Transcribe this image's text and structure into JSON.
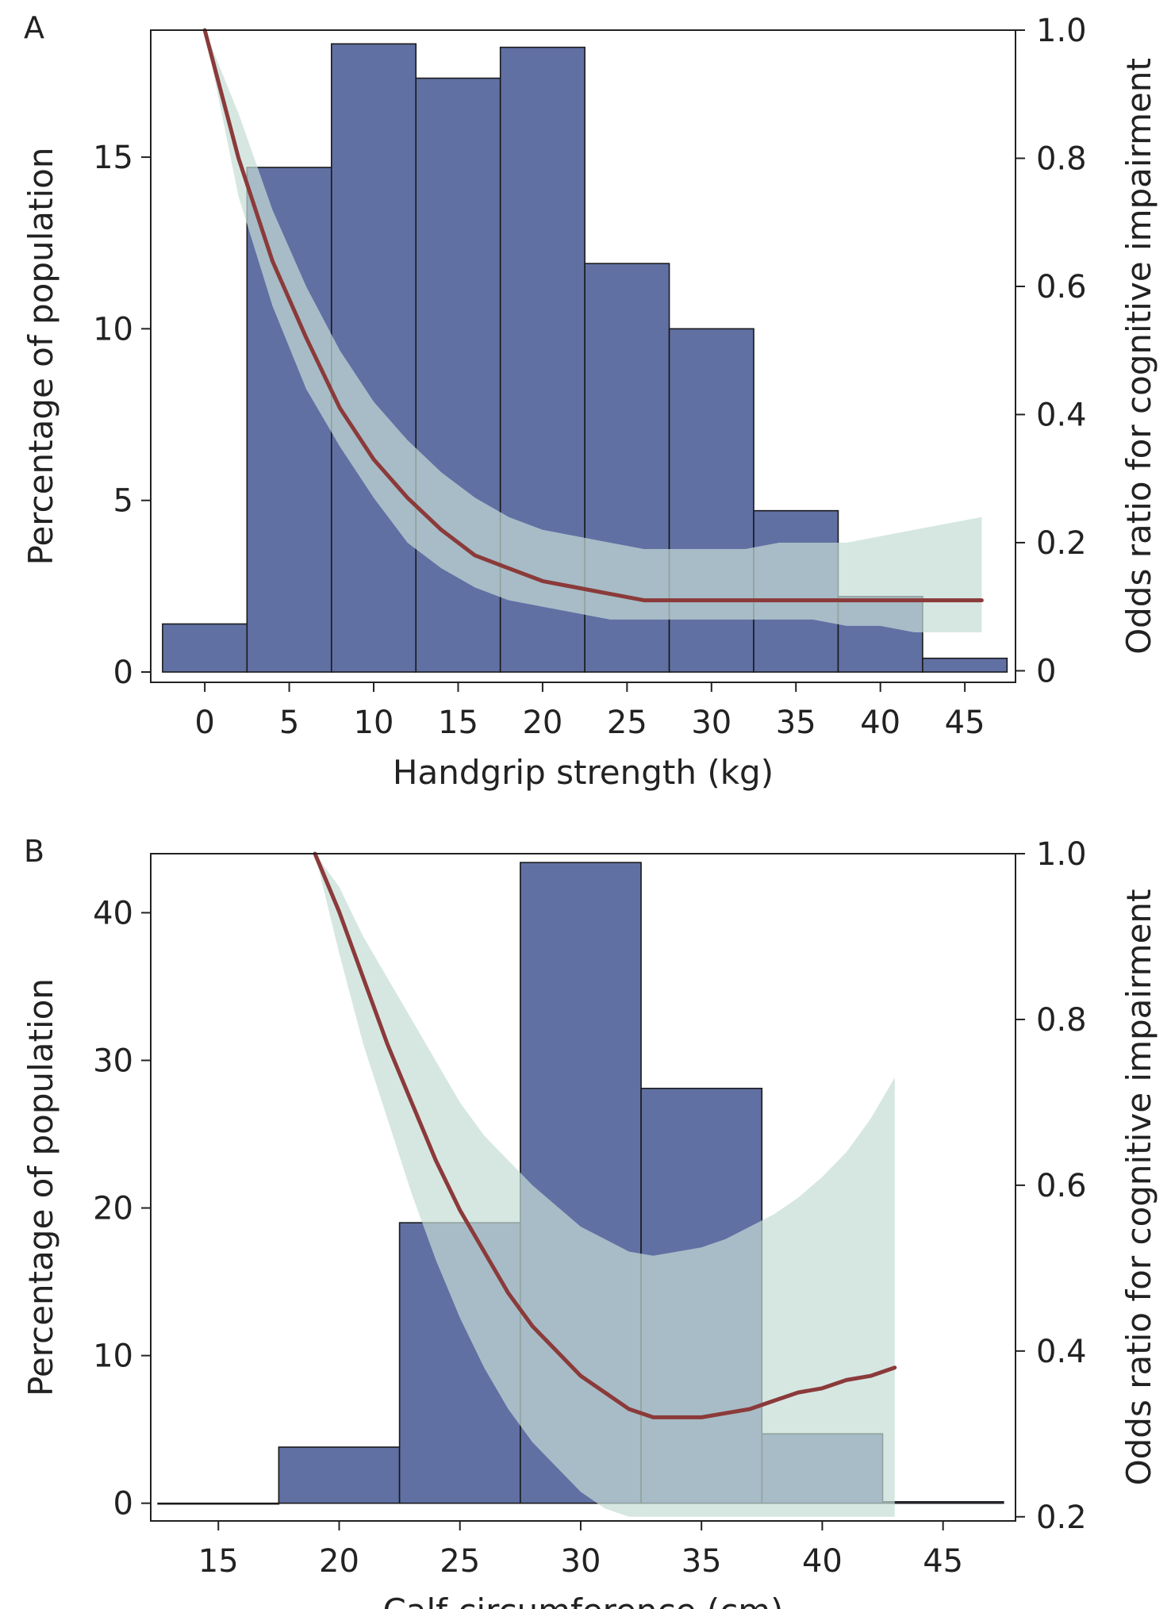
{
  "colors": {
    "bar_fill": "#6170a3",
    "bar_edge": "#1a1a1a",
    "curve": "#8b3a3a",
    "band": "#c5ddd5",
    "axis": "#222222"
  },
  "chart_data": [
    {
      "type": "bar",
      "panel_label": "A",
      "xlabel": "Handgrip strength (kg)",
      "ylabel": "Percentage of population",
      "y2label": "Odds ratio for cognitive impairment",
      "xlim": [
        -3.2,
        48
      ],
      "ylim": [
        -0.3,
        18.7
      ],
      "y2lim": [
        -0.018,
        1.0
      ],
      "xticks": [
        "0",
        "5",
        "10",
        "15",
        "20",
        "25",
        "30",
        "35",
        "40",
        "45"
      ],
      "yticks": [
        "0",
        "5",
        "10",
        "15"
      ],
      "y2ticks": [
        "0",
        "0.2",
        "0.4",
        "0.6",
        "0.8",
        "1.0"
      ],
      "bins": [
        {
          "from": -2.5,
          "to": 2.5,
          "value": 1.4
        },
        {
          "from": 2.5,
          "to": 7.5,
          "value": 14.7
        },
        {
          "from": 7.5,
          "to": 12.5,
          "value": 18.3
        },
        {
          "from": 12.5,
          "to": 17.5,
          "value": 17.3
        },
        {
          "from": 17.5,
          "to": 22.5,
          "value": 18.2
        },
        {
          "from": 22.5,
          "to": 27.5,
          "value": 11.9
        },
        {
          "from": 27.5,
          "to": 32.5,
          "value": 10.0
        },
        {
          "from": 32.5,
          "to": 37.5,
          "value": 4.7
        },
        {
          "from": 37.5,
          "to": 42.5,
          "value": 2.2
        },
        {
          "from": 42.5,
          "to": 47.5,
          "value": 0.4
        }
      ],
      "curve": {
        "x": [
          0,
          2,
          4,
          6,
          8,
          10,
          12,
          14,
          16,
          18,
          20,
          22,
          24,
          26,
          28,
          30,
          32,
          34,
          36,
          38,
          40,
          42,
          44,
          46
        ],
        "or": [
          1.0,
          0.8,
          0.64,
          0.52,
          0.41,
          0.33,
          0.27,
          0.22,
          0.18,
          0.16,
          0.14,
          0.13,
          0.12,
          0.11,
          0.11,
          0.11,
          0.11,
          0.11,
          0.11,
          0.11,
          0.11,
          0.11,
          0.11,
          0.11
        ],
        "lower": [
          1.0,
          0.74,
          0.57,
          0.44,
          0.35,
          0.27,
          0.2,
          0.16,
          0.13,
          0.11,
          0.1,
          0.09,
          0.08,
          0.08,
          0.08,
          0.08,
          0.08,
          0.08,
          0.08,
          0.07,
          0.07,
          0.06,
          0.06,
          0.06
        ],
        "upper": [
          1.0,
          0.87,
          0.72,
          0.6,
          0.5,
          0.42,
          0.36,
          0.31,
          0.27,
          0.24,
          0.22,
          0.21,
          0.2,
          0.19,
          0.19,
          0.19,
          0.19,
          0.2,
          0.2,
          0.2,
          0.21,
          0.22,
          0.23,
          0.24
        ]
      }
    },
    {
      "type": "bar",
      "panel_label": "B",
      "xlabel": "Calf circumference (cm)",
      "ylabel": "Percentage of population",
      "y2label": "Odds ratio for cognitive impairment",
      "xlim": [
        12.2,
        48
      ],
      "ylim": [
        -1.2,
        44.0
      ],
      "y2lim": [
        0.195,
        1.0
      ],
      "xticks": [
        "15",
        "20",
        "25",
        "30",
        "35",
        "40",
        "45"
      ],
      "yticks": [
        "0",
        "10",
        "20",
        "30",
        "40"
      ],
      "y2ticks": [
        "0.2",
        "0.4",
        "0.6",
        "0.8",
        "1.0"
      ],
      "bins": [
        {
          "from": 12.5,
          "to": 17.5,
          "value": 0.0
        },
        {
          "from": 17.5,
          "to": 22.5,
          "value": 3.8
        },
        {
          "from": 22.5,
          "to": 27.5,
          "value": 19.0
        },
        {
          "from": 27.5,
          "to": 32.5,
          "value": 43.4
        },
        {
          "from": 32.5,
          "to": 37.5,
          "value": 28.1
        },
        {
          "from": 37.5,
          "to": 42.5,
          "value": 4.7
        },
        {
          "from": 42.5,
          "to": 47.5,
          "value": 0.1
        }
      ],
      "curve": {
        "x": [
          19,
          20,
          21,
          22,
          23,
          24,
          25,
          26,
          27,
          28,
          29,
          30,
          31,
          32,
          33,
          34,
          35,
          36,
          37,
          38,
          39,
          40,
          41,
          42,
          43
        ],
        "or": [
          1.0,
          0.93,
          0.85,
          0.77,
          0.7,
          0.63,
          0.57,
          0.52,
          0.47,
          0.43,
          0.4,
          0.37,
          0.35,
          0.33,
          0.32,
          0.32,
          0.32,
          0.325,
          0.33,
          0.34,
          0.35,
          0.355,
          0.365,
          0.37,
          0.38
        ],
        "lower": [
          1.0,
          0.88,
          0.77,
          0.68,
          0.59,
          0.51,
          0.44,
          0.38,
          0.33,
          0.29,
          0.26,
          0.23,
          0.21,
          0.2,
          0.2,
          0.2,
          0.2,
          0.2,
          0.2,
          0.2,
          0.2,
          0.2,
          0.2,
          0.2,
          0.2
        ],
        "upper": [
          1.0,
          0.96,
          0.9,
          0.85,
          0.8,
          0.75,
          0.7,
          0.66,
          0.63,
          0.6,
          0.575,
          0.55,
          0.535,
          0.52,
          0.515,
          0.52,
          0.525,
          0.535,
          0.55,
          0.565,
          0.585,
          0.61,
          0.64,
          0.68,
          0.73
        ]
      }
    }
  ]
}
